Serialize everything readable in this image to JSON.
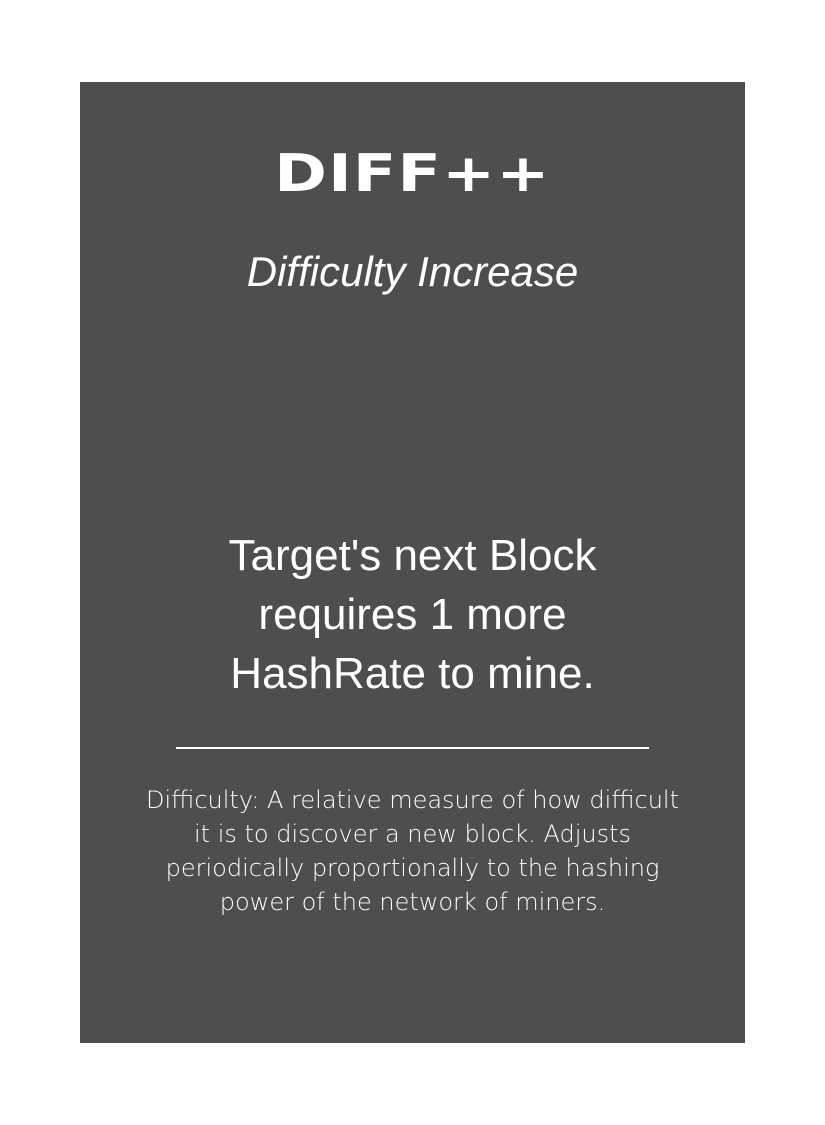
{
  "card": {
    "title": "DIFF++",
    "subtitle": "Difficulty Increase",
    "effect": "Target's next Block requires 1 more HashRate to mine.",
    "definition": "Difficulty: A relative measure of how difficult it is to discover a new block. Adjusts periodically proportionally to the hashing power of the network of miners.",
    "background_color": "#4e4e4e",
    "text_color": "#ffffff"
  }
}
